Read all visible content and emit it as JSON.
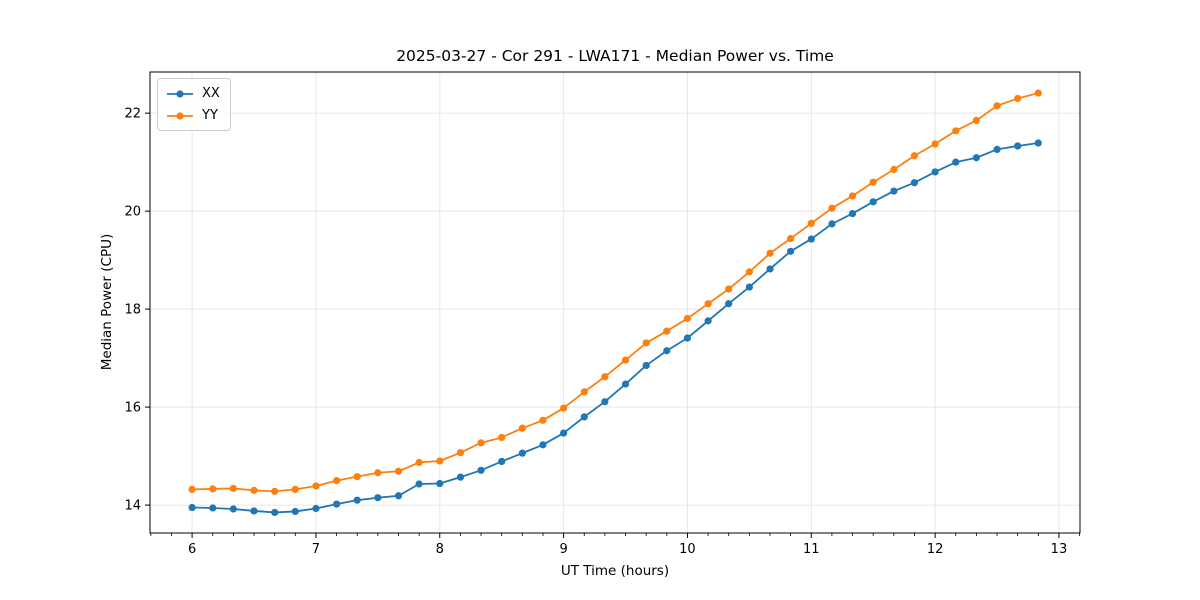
{
  "chart_data": {
    "type": "line",
    "title": "2025-03-27 - Cor 291 - LWA171 - Median Power vs. Time",
    "xlabel": "UT Time (hours)",
    "ylabel": "Median Power (CPU)",
    "xlim": [
      5.66,
      13.17
    ],
    "ylim": [
      13.43,
      22.84
    ],
    "xticks": [
      6,
      7,
      8,
      9,
      10,
      11,
      12,
      13
    ],
    "yticks": [
      14,
      16,
      18,
      20,
      22
    ],
    "x_minor_step_hours": 0.1667,
    "grid": "major-only",
    "grid_color": "#e6e6e6",
    "legend_position": "upper-left",
    "marker": "circle",
    "x": [
      6.0,
      6.167,
      6.333,
      6.5,
      6.667,
      6.833,
      7.0,
      7.167,
      7.333,
      7.5,
      7.667,
      7.833,
      8.0,
      8.167,
      8.333,
      8.5,
      8.667,
      8.833,
      9.0,
      9.167,
      9.333,
      9.5,
      9.667,
      9.833,
      10.0,
      10.167,
      10.333,
      10.5,
      10.667,
      10.833,
      11.0,
      11.167,
      11.333,
      11.5,
      11.667,
      11.833,
      12.0,
      12.167,
      12.333,
      12.5,
      12.667,
      12.833
    ],
    "series": [
      {
        "name": "XX",
        "color": "#1f77b4",
        "values": [
          13.95,
          13.94,
          13.92,
          13.88,
          13.85,
          13.87,
          13.93,
          14.02,
          14.1,
          14.15,
          14.19,
          14.43,
          14.44,
          14.57,
          14.71,
          14.89,
          15.06,
          15.23,
          15.47,
          15.8,
          16.11,
          16.47,
          16.85,
          17.15,
          17.41,
          17.76,
          18.11,
          18.45,
          18.82,
          19.18,
          19.43,
          19.74,
          19.95,
          20.19,
          20.41,
          20.58,
          20.8,
          21.0,
          21.09,
          21.26,
          21.33,
          21.39
        ]
      },
      {
        "name": "YY",
        "color": "#ff7f0e",
        "values": [
          14.32,
          14.33,
          14.34,
          14.3,
          14.28,
          14.32,
          14.39,
          14.5,
          14.58,
          14.66,
          14.69,
          14.87,
          14.9,
          15.07,
          15.27,
          15.38,
          15.57,
          15.73,
          15.98,
          16.31,
          16.62,
          16.96,
          17.31,
          17.55,
          17.81,
          18.11,
          18.41,
          18.76,
          19.14,
          19.44,
          19.75,
          20.06,
          20.31,
          20.59,
          20.85,
          21.13,
          21.37,
          21.64,
          21.85,
          22.15,
          22.3,
          22.41
        ]
      }
    ]
  }
}
